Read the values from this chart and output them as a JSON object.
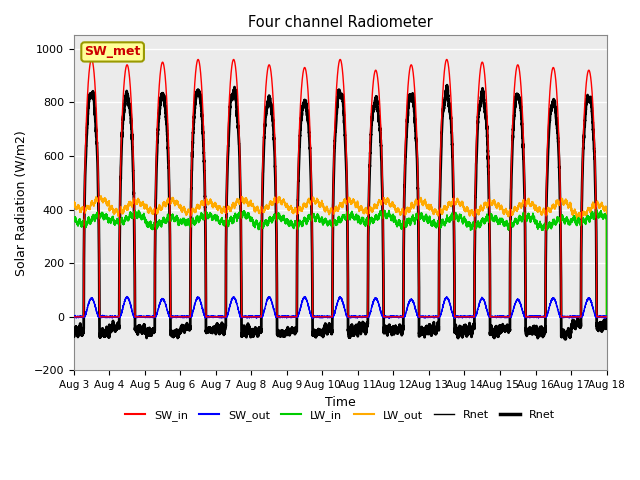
{
  "title": "Four channel Radiometer",
  "xlabel": "Time",
  "ylabel": "Solar Radiation (W/m2)",
  "ylim": [
    -200,
    1050
  ],
  "yticks": [
    -200,
    0,
    200,
    400,
    600,
    800,
    1000
  ],
  "x_tick_labels": [
    "Aug 3",
    "Aug 4",
    "Aug 5",
    "Aug 6",
    "Aug 7",
    "Aug 8",
    "Aug 9",
    "Aug 10",
    "Aug 11",
    "Aug 12",
    "Aug 13",
    "Aug 14",
    "Aug 15",
    "Aug 16",
    "Aug 17",
    "Aug 18"
  ],
  "colors": {
    "SW_in": "#ff0000",
    "SW_out": "#0000ff",
    "LW_in": "#00cc00",
    "LW_out": "#ffaa00",
    "Rnet": "#000000"
  },
  "annotation_text": "SW_met",
  "annotation_facecolor": "#ffff99",
  "annotation_edgecolor": "#999900",
  "annotation_textcolor": "#cc0000",
  "background_color": "#ebebeb",
  "n_days": 15,
  "SW_in_peak": 960,
  "LW_in_mean": 365,
  "LW_out_mean": 415,
  "legend_labels": [
    "SW_in",
    "SW_out",
    "LW_in",
    "LW_out",
    "Rnet",
    "Rnet"
  ]
}
